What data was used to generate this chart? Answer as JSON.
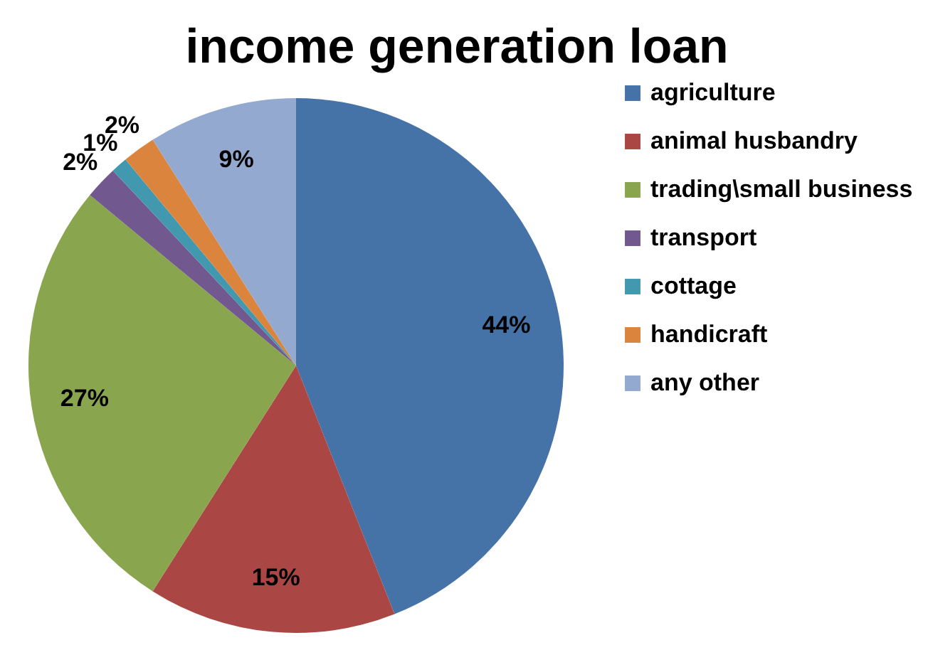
{
  "chart_data": {
    "type": "pie",
    "title": "income generation loan",
    "categories": [
      "agriculture",
      "animal husbandry",
      "trading\\small business",
      "transport",
      "cottage",
      "handicraft",
      "any other"
    ],
    "values": [
      44,
      15,
      27,
      2,
      1,
      2,
      9
    ],
    "colors": [
      "#4572a7",
      "#aa4643",
      "#89a54e",
      "#71588f",
      "#4198af",
      "#db843d",
      "#93a9cf"
    ],
    "value_labels": [
      "44%",
      "15%",
      "27%",
      "2%",
      "1%",
      "2%",
      "9%"
    ],
    "legend": "right"
  }
}
